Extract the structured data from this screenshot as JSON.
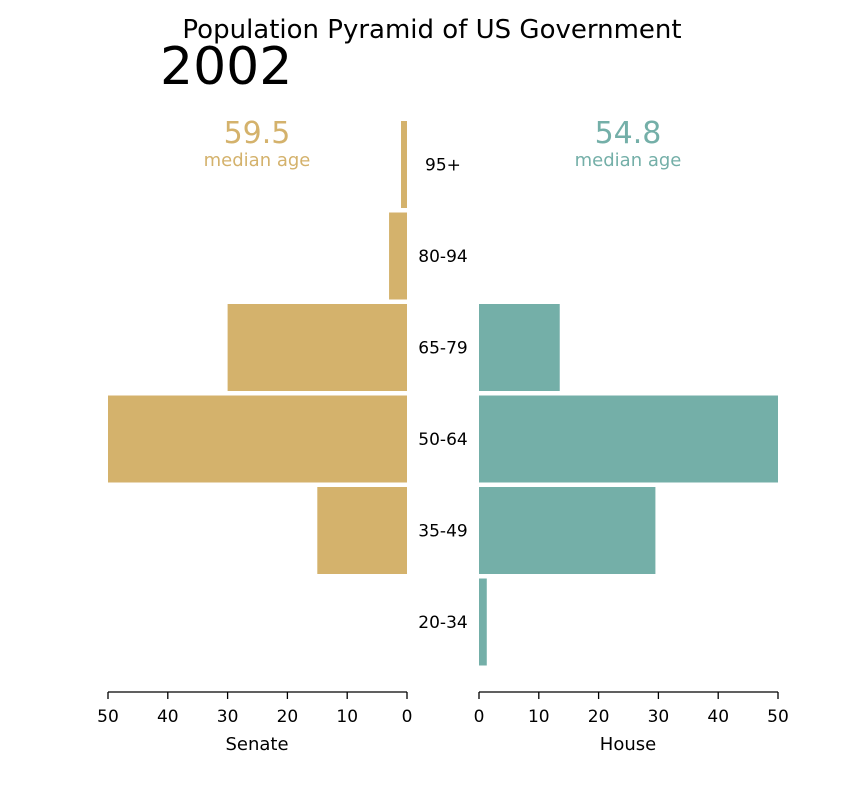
{
  "chart_data": {
    "type": "bar",
    "title": "Population Pyramid of US Government",
    "year": "2002",
    "categories": [
      "95+",
      "80-94",
      "65-79",
      "50-64",
      "35-49",
      "20-34"
    ],
    "series": [
      {
        "name": "Senate",
        "values": [
          1,
          3,
          30,
          50,
          15,
          0
        ],
        "color": "#d4b26c",
        "median_value": "59.5",
        "median_label": "median age",
        "xlabel": "Senate",
        "xlim": [
          50,
          0
        ],
        "ticks": [
          "50",
          "40",
          "30",
          "20",
          "10",
          "0"
        ]
      },
      {
        "name": "House",
        "values": [
          0,
          0,
          13.5,
          50,
          29.5,
          1.3
        ],
        "color": "#74afa8",
        "median_value": "54.8",
        "median_label": "median age",
        "xlabel": "House",
        "xlim": [
          0,
          50
        ],
        "ticks": [
          "0",
          "10",
          "20",
          "30",
          "40",
          "50"
        ]
      }
    ]
  }
}
